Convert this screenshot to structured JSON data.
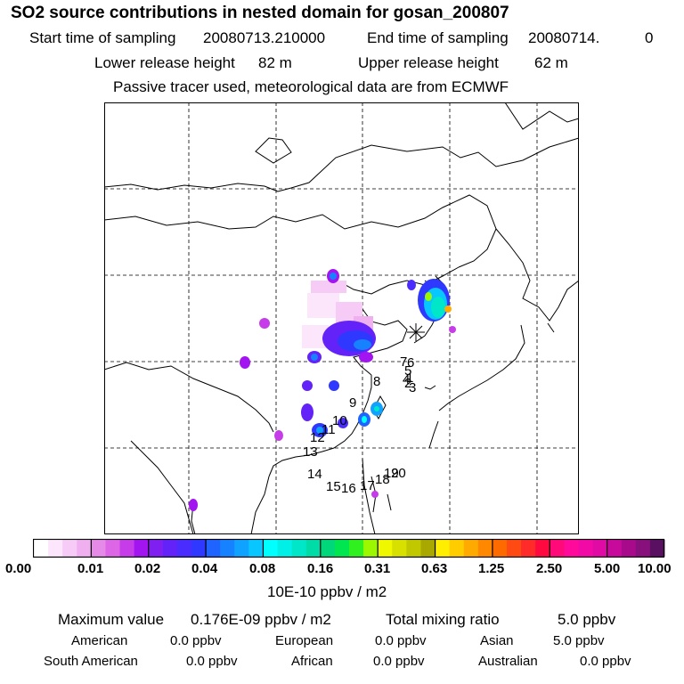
{
  "header": {
    "title": "SO2 source contributions in nested domain for gosan_200807",
    "start_label": "Start time of sampling",
    "start_value": "20080713.210000",
    "end_label": "End time of sampling",
    "end_value": "20080714.",
    "end_value2": "0",
    "lower_label": "Lower release height",
    "lower_value": "82 m",
    "upper_label": "Upper release height",
    "upper_value": "62 m",
    "note": "Passive tracer used, meteorological data are from ECMWF"
  },
  "map": {
    "frame_color": "#000000",
    "grid": "dashed",
    "receptor_marker": "asterisk",
    "day_labels": [
      "1",
      "2",
      "3",
      "4",
      "5",
      "6",
      "7",
      "8",
      "9",
      "10",
      "11",
      "12",
      "13",
      "14",
      "15",
      "16",
      "17",
      "18",
      "19",
      "20"
    ]
  },
  "colorbar": {
    "tick_labels": [
      "0.00",
      "0.01",
      "0.02",
      "0.04",
      "0.08",
      "0.16",
      "0.31",
      "0.63",
      "1.25",
      "2.50",
      "5.00",
      "10.00"
    ],
    "units": "10E-10 ppbv / m2",
    "colors": [
      [
        "#ffffff",
        "#fbe6fb",
        "#f6ccf6",
        "#f0b0f0"
      ],
      [
        "#e68ae8",
        "#dc66e6",
        "#c63ce8",
        "#a214f0"
      ],
      [
        "#8020f0",
        "#6222f8",
        "#4a2cff",
        "#2f38ff"
      ],
      [
        "#1f64ff",
        "#1682ff",
        "#10a2ff",
        "#08c6ff"
      ],
      [
        "#00ffff",
        "#00f0e8",
        "#00e6c8",
        "#00dca8"
      ],
      [
        "#00d67a",
        "#00e650",
        "#30f020",
        "#9cf800"
      ],
      [
        "#f0f800",
        "#d8e000",
        "#c2c800",
        "#a8a800"
      ],
      [
        "#ffee00",
        "#ffcc00",
        "#ffaa00",
        "#ff8800"
      ],
      [
        "#ff6a00",
        "#ff4a14",
        "#ff2a2a",
        "#ff0a40"
      ],
      [
        "#ff0a78",
        "#ff0a9a",
        "#f20aa6",
        "#e00aa4"
      ],
      [
        "#c80a9c",
        "#a80a8c",
        "#88107c",
        "#5a1060"
      ]
    ]
  },
  "summary": {
    "max_label": "Maximum value",
    "max_value": "0.176E-09 ppbv / m2",
    "total_label": "Total mixing ratio",
    "total_value": "5.0 ppbv",
    "regions": [
      {
        "name": "American",
        "value": "0.0 ppbv"
      },
      {
        "name": "European",
        "value": "0.0 ppbv"
      },
      {
        "name": "Asian",
        "value": "5.0 ppbv"
      },
      {
        "name": "South American",
        "value": "0.0 ppbv"
      },
      {
        "name": "African",
        "value": "0.0 ppbv"
      },
      {
        "name": "Australian",
        "value": "0.0 ppbv"
      }
    ]
  }
}
